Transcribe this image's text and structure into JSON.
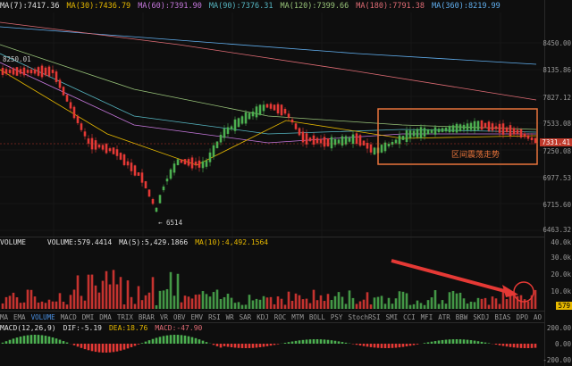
{
  "ma_bar": [
    {
      "label": "MA(7):7417.36",
      "color": "#e0e0e0"
    },
    {
      "label": "MA(30):7436.79",
      "color": "#e6b800"
    },
    {
      "label": "MA(60):7391.90",
      "color": "#c678dd"
    },
    {
      "label": "MA(90):7376.31",
      "color": "#56b6c2"
    },
    {
      "label": "MA(120):7399.66",
      "color": "#98c379"
    },
    {
      "label": "MA(180):7791.38",
      "color": "#e06c75"
    },
    {
      "label": "MA(360):8219.99",
      "color": "#61afef"
    }
  ],
  "price_axis": [
    "8450.00",
    "8135.86",
    "7827.12",
    "7533.08",
    "7250.08",
    "6977.53",
    "6715.60",
    "6463.32"
  ],
  "current_price": "7331.41",
  "high_label": "8250.01",
  "low_label": "← 6514",
  "annotation": "区间震荡走势",
  "volume_bar": {
    "title": "VOLUME",
    "items": [
      {
        "label": "VOLUME:579.4414",
        "color": "#e0e0e0"
      },
      {
        "label": "MA(5):5,429.1866",
        "color": "#e0e0e0"
      },
      {
        "label": "MA(10):4,492.1564",
        "color": "#e6b800"
      }
    ]
  },
  "volume_axis": [
    "40.0k",
    "30.0k",
    "20.0k",
    "10.0k"
  ],
  "volume_current": "579",
  "indicator_tabs": [
    "MA",
    "EMA",
    "VOLUME",
    "MACD",
    "DMI",
    "DMA",
    "TRIX",
    "BRAR",
    "VR",
    "OBV",
    "EMV",
    "RSI",
    "WR",
    "SAR",
    "KDJ",
    "ROC",
    "MTM",
    "BOLL",
    "PSY",
    "StochRSI",
    "SMI",
    "CCI",
    "MFI",
    "ATR",
    "BBW",
    "SKDJ",
    "BIAS",
    "DPO",
    "AO"
  ],
  "active_tab": "VOLUME",
  "macd_bar": [
    {
      "label": "MACD(12,26,9)",
      "color": "#e0e0e0"
    },
    {
      "label": "DIF:-5.19",
      "color": "#e0e0e0"
    },
    {
      "label": "DEA:18.76",
      "color": "#e6b800"
    },
    {
      "label": "MACD:-47.90",
      "color": "#e06c75"
    }
  ],
  "macd_axis": [
    "200.00",
    "0.00",
    "-200.00"
  ],
  "colors": {
    "up": "#4caf50",
    "down": "#e53935",
    "accent": "#e8743b"
  }
}
